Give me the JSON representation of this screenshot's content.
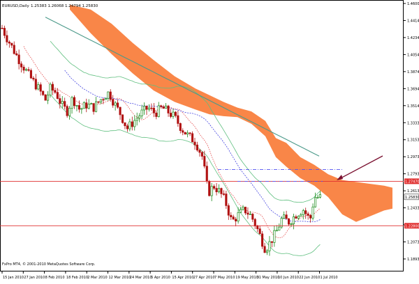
{
  "window": {
    "symbol_info": "EURUSD,Daily",
    "ohlc_readout": "1.25383 1.26068 1.24794 1.25830",
    "copyright": "FxPro MT4, © 2001-2010 MetaQuotes Software Corp."
  },
  "colors": {
    "background": "#ffffff",
    "cloud": "#f98648",
    "bull_candle": "#1a8a1a",
    "bear_candle": "#b01010",
    "kijun": "#2b2bdc",
    "tenkan": "#e03030",
    "bollinger": "#5fbf7f",
    "chikou_slow_ma": "#4c9a8a",
    "hline": "#e03030",
    "fib_line": "#5050f0",
    "arrow": "#7a1030",
    "axis_text": "#000000",
    "price_tag_red": "#e03030",
    "price_tag_current": "#ffffff"
  },
  "y_axis": {
    "labels": [
      "1.46000",
      "1.44140",
      "1.42340",
      "1.40540",
      "1.38740",
      "1.36940",
      "1.35140",
      "1.33334",
      "1.31534",
      "1.29734",
      "1.27934",
      "1.26134",
      "1.24334",
      "1.22534",
      "1.20734",
      "1.18934"
    ],
    "tags": {
      "upper_line": "1.27470",
      "current": "1.25830",
      "lower_line": "1.22800"
    }
  },
  "x_axis": {
    "labels": [
      "15 Jan 2010",
      "27 Jan 2010",
      "8 Feb 2010",
      "18 Feb 2010",
      "2 Mar 2010",
      "12 Mar 2010",
      "24 Mar 2010",
      "5 Apr 2010",
      "15 Apr 2010",
      "27 Apr 2010",
      "7 May 2010",
      "19 May 2010",
      "31 May 2010",
      "10 Jun 2010",
      "22 Jun 2010",
      "1 Jul 2010"
    ]
  },
  "chart_data": {
    "type": "candlestick",
    "instrument": "EURUSD",
    "timeframe": "Daily",
    "y_range": [
      1.18,
      1.465
    ],
    "date_range": [
      "2010-01-11",
      "2010-07-09"
    ],
    "horizontal_lines": [
      1.2747,
      1.228
    ],
    "key_levels": {
      "upper_line": 1.2747,
      "lower_line": 1.228,
      "last_close": 1.2583
    },
    "last_bar": {
      "open": 1.25383,
      "high": 1.26068,
      "low": 1.24794,
      "close": 1.2583
    }
  }
}
